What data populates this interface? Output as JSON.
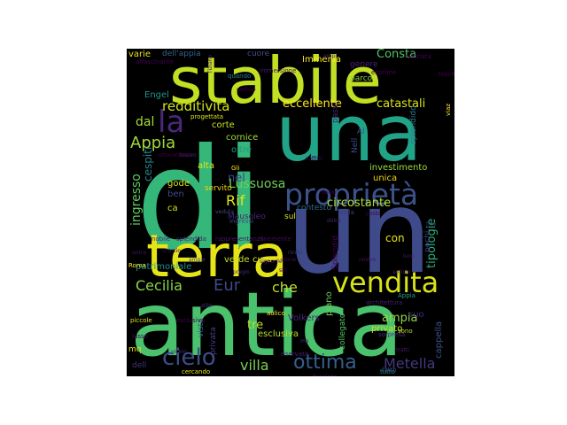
{
  "words": [
    {
      "text": "di",
      "color": "#35b779"
    },
    {
      "text": "un",
      "color": "#3e4a89"
    },
    {
      "text": "antica",
      "color": "#4ac16d"
    },
    {
      "text": "stabile",
      "color": "#c2df23"
    },
    {
      "text": "una",
      "color": "#20a386"
    },
    {
      "text": "terra",
      "color": "#e5e419"
    },
    {
      "text": "proprietà",
      "color": "#3b528b"
    },
    {
      "text": "vendita",
      "color": "#d8e219"
    },
    {
      "text": "la",
      "color": "#482878"
    },
    {
      "text": "cielo",
      "color": "#3e4c8a"
    },
    {
      "text": "ottima",
      "color": "#355f8d"
    },
    {
      "text": "Cecilia",
      "color": "#86d549"
    },
    {
      "text": "Eur",
      "color": "#3f4889"
    },
    {
      "text": "che",
      "color": "#bddf26"
    },
    {
      "text": "villa",
      "color": "#7ad151"
    },
    {
      "text": "Metella",
      "color": "#44397d"
    },
    {
      "text": "Appia",
      "color": "#a2da37"
    },
    {
      "text": "redditivita",
      "color": "#d0e11c"
    },
    {
      "text": "ingresso",
      "color": "#5ec962"
    },
    {
      "text": "Lussuosa",
      "color": "#6ece58"
    },
    {
      "text": "Rif",
      "color": "#e5e419"
    },
    {
      "text": "circostante",
      "color": "#addc30"
    },
    {
      "text": "catastali",
      "color": "#dae319"
    },
    {
      "text": "eccellente",
      "color": "#fde725"
    },
    {
      "text": "dal",
      "color": "#a8db34"
    },
    {
      "text": "Consta",
      "color": "#52c569"
    },
    {
      "text": "cespiti",
      "color": "#25838e"
    },
    {
      "text": "tipologie",
      "color": "#29af7f"
    },
    {
      "text": "tre",
      "color": "#c2df23"
    },
    {
      "text": "ampia",
      "color": "#90d743"
    },
    {
      "text": "nel",
      "color": "#3f4788"
    },
    {
      "text": "con",
      "color": "#e5e419"
    },
    {
      "text": "corte",
      "color": "#c5e021"
    },
    {
      "text": "oltre",
      "color": "#1f998a"
    },
    {
      "text": "investimento",
      "color": "#9bd93c"
    },
    {
      "text": "unica",
      "color": "#ecd510"
    },
    {
      "text": "esclusiva",
      "color": "#b8de29"
    },
    {
      "text": "Volkers",
      "color": "#482475"
    },
    {
      "text": "privato",
      "color": "#c8e020"
    },
    {
      "text": "cappella",
      "color": "#3b528b"
    },
    {
      "text": "suo",
      "color": "#482878"
    },
    {
      "text": "sul",
      "color": "#cde11d"
    },
    {
      "text": "contesto",
      "color": "#31688e"
    },
    {
      "text": "cura",
      "color": "#d2e21b"
    },
    {
      "text": "verde",
      "color": "#c5e021"
    },
    {
      "text": "patrimoniale",
      "color": "#218f8d"
    },
    {
      "text": "Immersa",
      "color": "#fde725"
    },
    {
      "text": "cornice",
      "color": "#a2da37"
    },
    {
      "text": "servito",
      "color": "#ecd510"
    },
    {
      "text": "gode",
      "color": "#dde318"
    },
    {
      "text": "alta",
      "color": "#e2e418"
    },
    {
      "text": "ben",
      "color": "#3f4788"
    },
    {
      "text": "ca",
      "color": "#d5e21a"
    },
    {
      "text": "Engel",
      "color": "#1f958b"
    },
    {
      "text": "parco",
      "color": "#8bd646"
    },
    {
      "text": "cuore",
      "color": "#3e4c8a"
    },
    {
      "text": "Al",
      "color": "#3b528b"
    },
    {
      "text": "splendido",
      "color": "#2a788e"
    },
    {
      "text": "Nell",
      "color": "#3f4889"
    },
    {
      "text": "collegato",
      "color": "#54c568"
    },
    {
      "text": "piano",
      "color": "#6ccd5a"
    },
    {
      "text": "passi",
      "color": "#482475"
    },
    {
      "text": "Mausoleo",
      "color": "#482677"
    },
    {
      "text": "pochi",
      "color": "#433e85"
    },
    {
      "text": "Splendid",
      "color": "#440154"
    },
    {
      "text": "vista",
      "color": "#2e6e8e"
    },
    {
      "text": "privata",
      "color": "#433d84"
    },
    {
      "text": "mq",
      "color": "#e5e419"
    },
    {
      "text": "dell",
      "color": "#46327e"
    },
    {
      "text": "varie",
      "color": "#e7e419"
    },
    {
      "text": "dell'appia",
      "color": "#33638d"
    },
    {
      "text": "genere",
      "color": "#482475"
    },
    {
      "text": "esprime",
      "color": "#440154"
    },
    {
      "text": "Roma",
      "color": "#fde725"
    },
    {
      "text": "aulico",
      "color": "#fde725"
    },
    {
      "text": "piccole",
      "color": "#dde318"
    },
    {
      "text": "sono",
      "color": "#c0df25"
    },
    {
      "text": "Appia",
      "color": "#1fa187"
    },
    {
      "text": "quando",
      "color": "#26818e"
    },
    {
      "text": "progettata",
      "color": "#dde318"
    },
    {
      "text": "cercando",
      "color": "#e5e419"
    },
    {
      "text": "Gli",
      "color": "#fde725"
    },
    {
      "text": "nobile",
      "color": "#482878"
    },
    {
      "text": "dalla",
      "color": "#443a83"
    },
    {
      "text": "ingressi",
      "color": "#3d4d8a"
    },
    {
      "text": "tutto",
      "color": "#21918c"
    },
    {
      "text": "foschi",
      "color": "#440154"
    },
    {
      "text": "viaz",
      "color": "#fde725"
    },
    {
      "text": "sorpresa",
      "color": "#472d7b"
    },
    {
      "text": "fatto",
      "color": "#3e4a89"
    },
    {
      "text": "riservata",
      "color": "#482173"
    },
    {
      "text": "esclusiva",
      "color": "#440154"
    },
    {
      "text": "architettura",
      "color": "#481f70"
    },
    {
      "text": "splendida",
      "color": "#482173"
    },
    {
      "text": "rappresentanza",
      "color": "#471164"
    },
    {
      "text": "finemente",
      "color": "#46085c"
    },
    {
      "text": "affascinante",
      "color": "#440154"
    },
    {
      "text": "immersione",
      "color": "#481769"
    },
    {
      "text": "raffinata",
      "color": "#450457"
    },
    {
      "text": "facciata",
      "color": "#481467"
    },
    {
      "text": "lusso",
      "color": "#46085c"
    },
    {
      "text": "Tiziano",
      "color": "#48186a"
    },
    {
      "text": "soffitti",
      "color": "#440154"
    },
    {
      "text": "tesoro",
      "color": "#472a7a"
    },
    {
      "text": "dolce",
      "color": "#482475"
    },
    {
      "text": "stile",
      "color": "#472c7a"
    },
    {
      "text": "fine",
      "color": "#46337f"
    },
    {
      "text": "edificio",
      "color": "#440154"
    },
    {
      "text": "nostro",
      "color": "#471063"
    },
    {
      "text": "ampio",
      "color": "#3f4788"
    },
    {
      "text": "signorile",
      "color": "#481a6c"
    },
    {
      "text": "storia",
      "color": "#46085c"
    },
    {
      "text": "vicino",
      "color": "#472e7c"
    },
    {
      "text": "tratti",
      "color": "#481b6d"
    },
    {
      "text": "ampi",
      "color": "#462f7e"
    },
    {
      "text": "ricchi",
      "color": "#45337e"
    },
    {
      "text": "veduta",
      "color": "#3f4788"
    },
    {
      "text": "posto",
      "color": "#440154"
    },
    {
      "text": "ottocentesca",
      "color": "#440154"
    },
    {
      "text": "antichi",
      "color": "#481769"
    },
    {
      "text": "pregio",
      "color": "#472a7a"
    },
    {
      "text": "unico",
      "color": "#481668"
    },
    {
      "text": "siti",
      "color": "#440154"
    },
    {
      "text": "ma",
      "color": "#46327e"
    },
    {
      "text": "decor",
      "color": "#440154"
    },
    {
      "text": "scorcio",
      "color": "#450457"
    },
    {
      "text": "luce",
      "color": "#481f70"
    }
  ]
}
